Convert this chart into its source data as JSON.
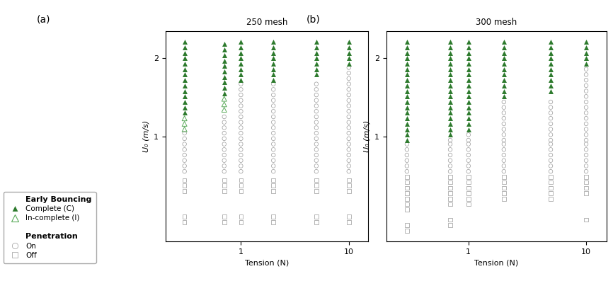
{
  "panel_a": {
    "title": "250 mesh",
    "tensions": [
      0.3,
      0.7,
      1.0,
      2.0,
      5.0,
      10.0
    ],
    "complete_triangles": {
      "0.3": [
        1.3,
        1.37,
        1.44,
        1.51,
        1.58,
        1.65,
        1.72,
        1.79,
        1.86,
        1.93,
        2.0,
        2.07,
        2.14,
        2.21
      ],
      "0.7": [
        1.55,
        1.62,
        1.69,
        1.76,
        1.83,
        1.9,
        1.97,
        2.04,
        2.11,
        2.18
      ],
      "1.0": [
        1.72,
        1.79,
        1.86,
        1.93,
        2.0,
        2.07,
        2.14,
        2.21
      ],
      "2.0": [
        1.72,
        1.79,
        1.86,
        1.93,
        2.0,
        2.07,
        2.14,
        2.21
      ],
      "5.0": [
        1.79,
        1.86,
        1.93,
        2.0,
        2.07,
        2.14,
        2.21
      ],
      "10.0": [
        1.93,
        2.0,
        2.07,
        2.14,
        2.21
      ]
    },
    "incomplete_triangles": {
      "0.3": [
        1.09,
        1.16,
        1.23
      ],
      "0.7": [
        1.34,
        1.41,
        1.48
      ],
      "1.0": [],
      "2.0": [],
      "5.0": [],
      "10.0": []
    },
    "circles_on": {
      "0.3": [
        0.55,
        0.62,
        0.69,
        0.76,
        0.83,
        0.9,
        0.97,
        1.04
      ],
      "0.7": [
        0.55,
        0.62,
        0.69,
        0.76,
        0.83,
        0.9,
        0.97,
        1.04,
        1.11,
        1.18,
        1.25
      ],
      "1.0": [
        0.55,
        0.62,
        0.69,
        0.76,
        0.83,
        0.9,
        0.97,
        1.04,
        1.11,
        1.18,
        1.25,
        1.32,
        1.39,
        1.46,
        1.53,
        1.6,
        1.67
      ],
      "2.0": [
        0.55,
        0.62,
        0.69,
        0.76,
        0.83,
        0.9,
        0.97,
        1.04,
        1.11,
        1.18,
        1.25,
        1.32,
        1.39,
        1.46,
        1.53,
        1.6,
        1.67
      ],
      "5.0": [
        0.55,
        0.62,
        0.69,
        0.76,
        0.83,
        0.9,
        0.97,
        1.04,
        1.11,
        1.18,
        1.25,
        1.32,
        1.39,
        1.46,
        1.53,
        1.6,
        1.67
      ],
      "10.0": [
        0.55,
        0.62,
        0.69,
        0.76,
        0.83,
        0.9,
        0.97,
        1.04,
        1.11,
        1.18,
        1.25,
        1.32,
        1.39,
        1.46,
        1.53,
        1.6,
        1.67,
        1.74,
        1.81,
        1.88
      ]
    },
    "squares_off": {
      "0.3": [
        0.3,
        0.37,
        0.44
      ],
      "0.7": [
        0.3,
        0.37,
        0.44
      ],
      "1.0": [
        0.3,
        0.37,
        0.44
      ],
      "2.0": [
        0.3,
        0.37,
        0.44
      ],
      "5.0": [
        0.3,
        0.37,
        0.44
      ],
      "10.0": [
        0.3,
        0.37,
        0.44
      ]
    },
    "squares_off_low": {
      "0.3": [
        -0.1,
        -0.03
      ],
      "0.7": [
        -0.1,
        -0.03
      ],
      "1.0": [
        -0.1,
        -0.03
      ],
      "2.0": [
        -0.1,
        -0.03
      ],
      "5.0": [
        -0.1,
        -0.03
      ],
      "10.0": [
        -0.1,
        -0.03
      ]
    }
  },
  "panel_b": {
    "title": "300 mesh",
    "tensions": [
      0.3,
      0.7,
      1.0,
      2.0,
      5.0,
      10.0
    ],
    "complete_triangles": {
      "0.3": [
        0.95,
        1.02,
        1.09,
        1.16,
        1.23,
        1.3,
        1.37,
        1.44,
        1.51,
        1.58,
        1.65,
        1.72,
        1.79,
        1.86,
        1.93,
        2.0,
        2.07,
        2.14,
        2.21
      ],
      "0.7": [
        1.02,
        1.09,
        1.16,
        1.23,
        1.3,
        1.37,
        1.44,
        1.51,
        1.58,
        1.65,
        1.72,
        1.79,
        1.86,
        1.93,
        2.0,
        2.07,
        2.14,
        2.21
      ],
      "1.0": [
        1.09,
        1.16,
        1.23,
        1.3,
        1.37,
        1.44,
        1.51,
        1.58,
        1.65,
        1.72,
        1.79,
        1.86,
        1.93,
        2.0,
        2.07,
        2.14,
        2.21
      ],
      "2.0": [
        1.51,
        1.58,
        1.65,
        1.72,
        1.79,
        1.86,
        1.93,
        2.0,
        2.07,
        2.14,
        2.21
      ],
      "5.0": [
        1.58,
        1.65,
        1.72,
        1.79,
        1.86,
        1.93,
        2.0,
        2.07,
        2.14,
        2.21
      ],
      "10.0": [
        1.93,
        2.0,
        2.07,
        2.14,
        2.21
      ]
    },
    "incomplete_triangles": {
      "0.3": [],
      "0.7": [],
      "1.0": [],
      "2.0": [],
      "5.0": [],
      "10.0": []
    },
    "circles_on": {
      "0.3": [
        0.55,
        0.62,
        0.69,
        0.76,
        0.83,
        0.9
      ],
      "0.7": [
        0.55,
        0.62,
        0.69,
        0.76,
        0.83,
        0.9,
        0.95
      ],
      "1.0": [
        0.55,
        0.62,
        0.69,
        0.76,
        0.83,
        0.9,
        0.95,
        1.02
      ],
      "2.0": [
        0.55,
        0.62,
        0.69,
        0.76,
        0.83,
        0.9,
        0.95,
        1.02,
        1.09,
        1.16,
        1.23,
        1.3,
        1.37,
        1.44
      ],
      "5.0": [
        0.55,
        0.62,
        0.69,
        0.76,
        0.83,
        0.9,
        0.95,
        1.02,
        1.09,
        1.16,
        1.23,
        1.3,
        1.37,
        1.44
      ],
      "10.0": [
        0.55,
        0.62,
        0.69,
        0.76,
        0.83,
        0.9,
        0.95,
        1.02,
        1.09,
        1.16,
        1.23,
        1.3,
        1.37,
        1.44,
        1.51,
        1.58,
        1.65,
        1.72,
        1.79,
        1.86
      ]
    },
    "squares_off": {
      "0.3": [
        0.06,
        0.13,
        0.2,
        0.27,
        0.34,
        0.41,
        0.48
      ],
      "0.7": [
        0.13,
        0.2,
        0.27,
        0.34,
        0.41,
        0.48
      ],
      "1.0": [
        0.13,
        0.2,
        0.27,
        0.34,
        0.41,
        0.48
      ],
      "2.0": [
        0.2,
        0.27,
        0.34,
        0.41,
        0.48
      ],
      "5.0": [
        0.2,
        0.27,
        0.34,
        0.41,
        0.48
      ],
      "10.0": [
        0.27,
        0.34,
        0.41,
        0.48
      ]
    },
    "squares_off_low": {
      "0.3": [
        -0.21,
        -0.14
      ],
      "0.7": [
        -0.14,
        -0.07
      ],
      "1.0": [],
      "2.0": [],
      "5.0": [],
      "10.0": [
        -0.07
      ]
    }
  },
  "triangle_complete_color": "#2d7a2d",
  "triangle_incomplete_color": "#5aaa5a",
  "circle_color": "#999999",
  "square_color": "#999999",
  "marker_size_triangle": 5,
  "marker_size_circle": 4,
  "marker_size_square": 4,
  "ylim": [
    -0.35,
    2.35
  ],
  "yticks": [
    1,
    2
  ],
  "ytick_labels": [
    "1",
    "2"
  ],
  "xlabel": "Tension (N)",
  "ylabel": "U₀ (m/s)"
}
